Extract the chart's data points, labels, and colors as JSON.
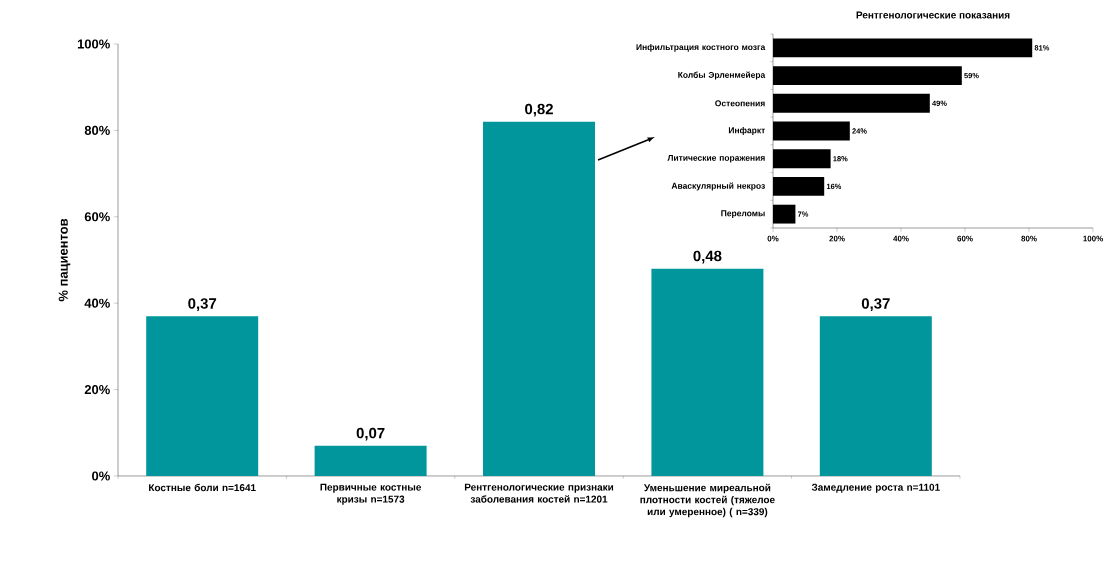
{
  "chart_data": [
    {
      "type": "bar",
      "ylabel": "% пациентов",
      "color": "#00969c",
      "categories": [
        "Костные боли n=1641",
        "Первичные костные кризы n=1573",
        "Рентгенологические признаки заболевания костей n=1201",
        "Уменьшение миреальной плотности костей (тяжелое или умеренное) ( n=339)",
        "Замедление роста n=1101"
      ],
      "values": [
        0.37,
        0.07,
        0.82,
        0.48,
        0.37
      ],
      "value_labels": [
        "0,37",
        "0,07",
        "0,82",
        "0,48",
        "0,37"
      ],
      "ylim": [
        0,
        1
      ],
      "yticks": [
        {
          "value": 0,
          "label": "0%"
        },
        {
          "value": 0.2,
          "label": "20%"
        },
        {
          "value": 0.4,
          "label": "40%"
        },
        {
          "value": 0.6,
          "label": "60%"
        },
        {
          "value": 0.8,
          "label": "80%"
        },
        {
          "value": 1,
          "label": "100%"
        }
      ]
    },
    {
      "type": "bar",
      "orientation": "horizontal",
      "title": "Рентгенологические показания",
      "color": "#000000",
      "categories": [
        "Инфильтрация костного мозга",
        "Колбы Эрленмейера",
        "Остеопения",
        "Инфаркт",
        "Литические поражения",
        "Аваскулярный некроз",
        "Переломы"
      ],
      "values": [
        81,
        59,
        49,
        24,
        18,
        16,
        7
      ],
      "value_labels": [
        "81%",
        "59%",
        "49%",
        "24%",
        "18%",
        "16%",
        "7%"
      ],
      "xlim": [
        0,
        100
      ],
      "xticks": [
        {
          "value": 0,
          "label": "0%"
        },
        {
          "value": 20,
          "label": "20%"
        },
        {
          "value": 40,
          "label": "40%"
        },
        {
          "value": 60,
          "label": "60%"
        },
        {
          "value": 80,
          "label": "80%"
        },
        {
          "value": 100,
          "label": "100%"
        }
      ]
    }
  ]
}
